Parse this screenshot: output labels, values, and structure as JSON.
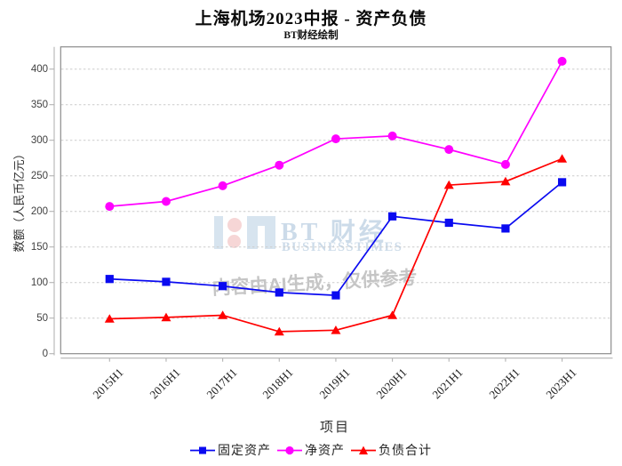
{
  "header": {
    "title": "上海机场2023中报 - 资产负债",
    "subtitle": "BT财经绘制"
  },
  "chart_data": {
    "type": "line",
    "title": "上海机场2023中报 - 资产负债",
    "subtitle": "BT财经绘制",
    "categories": [
      "2015H1",
      "2016H1",
      "2017H1",
      "2018H1",
      "2019H1",
      "2020H1",
      "2021H1",
      "2022H1",
      "2023H1"
    ],
    "series": [
      {
        "id": "fixed-assets",
        "name": "固定资产",
        "marker": "square",
        "color": "#0a0af0",
        "values": [
          105,
          101,
          95,
          86,
          82,
          193,
          184,
          176,
          241
        ]
      },
      {
        "id": "net-assets",
        "name": "净资产",
        "marker": "circle",
        "color": "#ff00ff",
        "values": [
          207,
          214,
          236,
          265,
          302,
          306,
          287,
          266,
          411
        ]
      },
      {
        "id": "total-liabilities",
        "name": "负债合计",
        "marker": "triangle",
        "color": "#ff0000",
        "values": [
          49,
          51,
          54,
          31,
          33,
          54,
          237,
          242,
          274
        ]
      }
    ],
    "xlabel": "项目",
    "ylabel": "数额（人民币亿元）",
    "ylim": [
      0,
      430
    ],
    "yticks": [
      0,
      50,
      100,
      150,
      200,
      250,
      300,
      350,
      400
    ],
    "grid": "horizontal-dashed",
    "legend_position": "bottom"
  },
  "watermark": {
    "logo_text": "BT 财经",
    "logo_subtext": "BUSINESSTIMES",
    "ai_text": "内容由AI生成，仅供参考"
  },
  "style_colors": {
    "gridline": "#cccccc",
    "plot_border": "#8c8c8c",
    "axis_line": "#b3b3b3",
    "tick_text": "#3f3f3f"
  }
}
